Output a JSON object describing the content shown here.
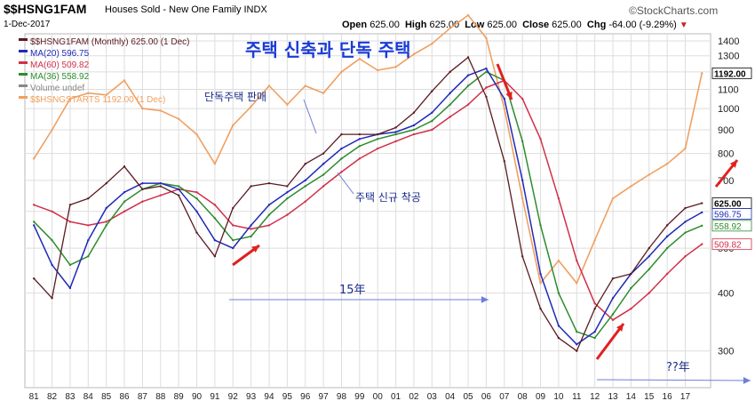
{
  "header": {
    "symbol": "$$HSNG1FAM",
    "description": "Houses Sold - New One Family  INDX",
    "date": "1-Dec-2017",
    "open_label": "Open",
    "open": "625.00",
    "high_label": "High",
    "high": "625.00",
    "low_label": "Low",
    "low": "625.00",
    "close_label": "Close",
    "close": "625.00",
    "chg_label": "Chg",
    "chg": "-64.00 (-9.29%)",
    "chg_icon": "triangle-down-icon",
    "logo": "©StockCharts.com"
  },
  "legend": [
    {
      "label": "$$HSNG1FAM (Monthly) 625.00 (1 Dec)",
      "color": "#5a1a20"
    },
    {
      "label": "MA(20) 596.75",
      "color": "#1f2ab8"
    },
    {
      "label": "MA(60) 509.82",
      "color": "#d0304a"
    },
    {
      "label": "MA(36) 558.92",
      "color": "#2e8b2e"
    },
    {
      "label": "Volume undef",
      "color": "#888888"
    },
    {
      "label": "$$HSNGSTARTS 1192.00 (1 Dec)",
      "color": "#f0a060"
    }
  ],
  "annotations": {
    "title_ko": "주택 신축과 단독 주택",
    "sales_ko": "단독주택 판매",
    "starts_ko": "주택 신규 착공",
    "span_15": "15年",
    "span_unknown": "??年"
  },
  "right_labels": {
    "starts": "1192.00",
    "close": "625.00",
    "ma20": "596.75",
    "ma36": "558.92",
    "ma60": "509.82"
  },
  "colors": {
    "sales": "#5a1a20",
    "ma20": "#1f2ab8",
    "ma36": "#2e8b2e",
    "ma60": "#d0304a",
    "starts": "#f0a060",
    "arrow_red": "#e02020",
    "arrow_blue": "#6d7fd6",
    "grid": "#dddddd",
    "title_ko": "#1a3bd6"
  },
  "chart_data": {
    "type": "line",
    "title": "$$HSNG1FAM",
    "y_scale": "log",
    "ylim": [
      250,
      1450
    ],
    "yticks": [
      300,
      400,
      500,
      600,
      700,
      800,
      900,
      1000,
      1100,
      1200,
      1300,
      1400
    ],
    "xlim": [
      1980.5,
      2018.4
    ],
    "xtick_labels": [
      "81",
      "82",
      "83",
      "84",
      "85",
      "86",
      "87",
      "88",
      "89",
      "90",
      "91",
      "92",
      "93",
      "94",
      "95",
      "96",
      "97",
      "98",
      "99",
      "00",
      "01",
      "02",
      "03",
      "04",
      "05",
      "06",
      "07",
      "08",
      "09",
      "10",
      "11",
      "12",
      "13",
      "14",
      "15",
      "16",
      "17"
    ],
    "series": [
      {
        "name": "$$HSNG1FAM",
        "x": [
          1981,
          1982,
          1983,
          1984,
          1985,
          1986,
          1987,
          1988,
          1989,
          1990,
          1991,
          1992,
          1993,
          1994,
          1995,
          1996,
          1997,
          1998,
          1999,
          2000,
          2001,
          2002,
          2003,
          2004,
          2005,
          2006,
          2007,
          2008,
          2009,
          2010,
          2011,
          2012,
          2013,
          2014,
          2015,
          2016,
          2017,
          2017.92
        ],
        "values": [
          430,
          390,
          620,
          640,
          690,
          750,
          670,
          680,
          650,
          540,
          480,
          610,
          680,
          690,
          680,
          760,
          800,
          880,
          880,
          880,
          910,
          980,
          1090,
          1200,
          1290,
          1060,
          770,
          480,
          370,
          320,
          300,
          370,
          430,
          440,
          500,
          560,
          610,
          625
        ]
      },
      {
        "name": "MA(20)",
        "x": [
          1981,
          1982,
          1983,
          1984,
          1985,
          1986,
          1987,
          1988,
          1989,
          1990,
          1991,
          1992,
          1993,
          1994,
          1995,
          1996,
          1997,
          1998,
          1999,
          2000,
          2001,
          2002,
          2003,
          2004,
          2005,
          2006,
          2007,
          2008,
          2009,
          2010,
          2011,
          2012,
          2013,
          2014,
          2015,
          2016,
          2017,
          2017.92
        ],
        "values": [
          560,
          460,
          410,
          520,
          610,
          660,
          690,
          690,
          670,
          600,
          520,
          500,
          560,
          620,
          660,
          700,
          760,
          820,
          860,
          880,
          890,
          920,
          980,
          1080,
          1180,
          1220,
          1050,
          700,
          440,
          340,
          310,
          330,
          390,
          440,
          480,
          530,
          570,
          597
        ]
      },
      {
        "name": "MA(36)",
        "x": [
          1981,
          1982,
          1983,
          1984,
          1985,
          1986,
          1987,
          1988,
          1989,
          1990,
          1991,
          1992,
          1993,
          1994,
          1995,
          1996,
          1997,
          1998,
          1999,
          2000,
          2001,
          2002,
          2003,
          2004,
          2005,
          2006,
          2007,
          2008,
          2009,
          2010,
          2011,
          2012,
          2013,
          2014,
          2015,
          2016,
          2017,
          2017.92
        ],
        "values": [
          570,
          520,
          460,
          480,
          560,
          630,
          670,
          690,
          680,
          640,
          580,
          520,
          530,
          590,
          640,
          680,
          720,
          780,
          830,
          860,
          880,
          900,
          940,
          1020,
          1120,
          1200,
          1150,
          850,
          560,
          400,
          330,
          320,
          360,
          410,
          450,
          500,
          540,
          559
        ]
      },
      {
        "name": "MA(60)",
        "x": [
          1981,
          1982,
          1983,
          1984,
          1985,
          1986,
          1987,
          1988,
          1989,
          1990,
          1991,
          1992,
          1993,
          1994,
          1995,
          1996,
          1997,
          1998,
          1999,
          2000,
          2001,
          2002,
          2003,
          2004,
          2005,
          2006,
          2007,
          2008,
          2009,
          2010,
          2011,
          2012,
          2013,
          2014,
          2015,
          2016,
          2017,
          2017.92
        ],
        "values": [
          620,
          600,
          570,
          560,
          570,
          600,
          630,
          650,
          670,
          660,
          620,
          560,
          550,
          560,
          590,
          630,
          680,
          730,
          780,
          820,
          850,
          880,
          900,
          960,
          1020,
          1110,
          1150,
          1050,
          860,
          640,
          470,
          380,
          350,
          370,
          400,
          440,
          480,
          510
        ]
      },
      {
        "name": "$$HSNGSTARTS",
        "x": [
          1981,
          1982,
          1983,
          1984,
          1985,
          1986,
          1987,
          1988,
          1989,
          1990,
          1991,
          1992,
          1993,
          1994,
          1995,
          1996,
          1997,
          1998,
          1999,
          2000,
          2001,
          2002,
          2003,
          2004,
          2005,
          2006,
          2007,
          2008,
          2009,
          2010,
          2011,
          2012,
          2013,
          2014,
          2015,
          2016,
          2017,
          2017.92
        ],
        "values": [
          780,
          900,
          1050,
          1080,
          1070,
          1150,
          1000,
          990,
          950,
          880,
          760,
          920,
          1010,
          1120,
          1020,
          1120,
          1080,
          1200,
          1280,
          1210,
          1230,
          1310,
          1380,
          1490,
          1590,
          1420,
          1000,
          640,
          420,
          470,
          420,
          520,
          640,
          680,
          720,
          760,
          820,
          1192
        ]
      }
    ]
  }
}
